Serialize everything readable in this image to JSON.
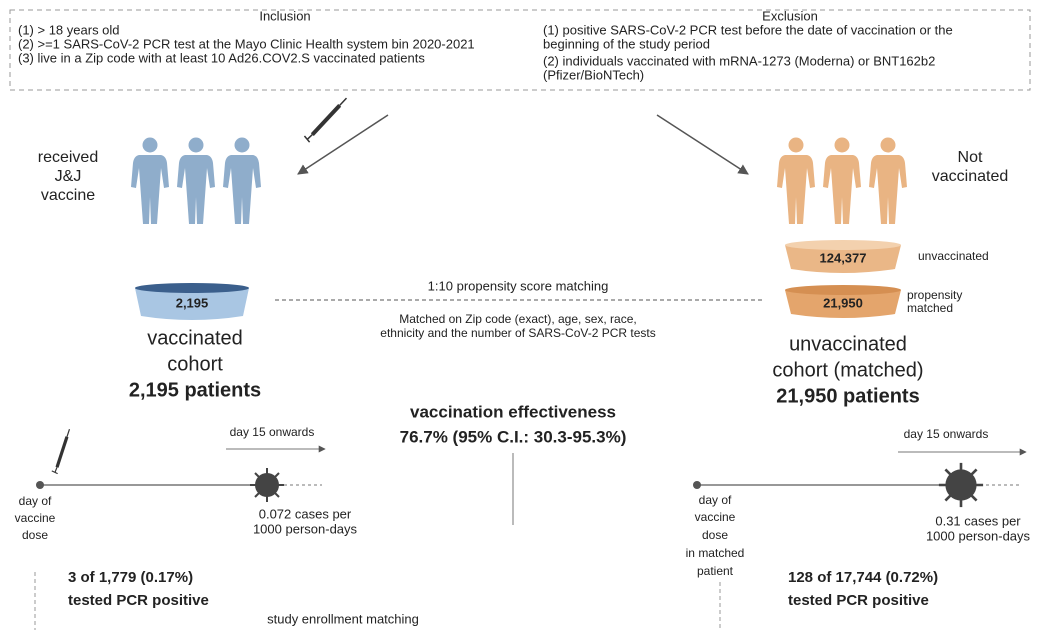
{
  "inclusion": {
    "title": "Inclusion",
    "lines": [
      "(1) > 18 years old",
      "(2) >=1 SARS-CoV-2 PCR test at the Mayo Clinic Health system bin 2020-2021",
      "(3) live in a Zip code with at least 10 Ad26.COV2.S vaccinated patients"
    ]
  },
  "exclusion": {
    "title": "Exclusion",
    "lines": [
      "(1) positive SARS-CoV-2 PCR test before the date of vaccination or the",
      "beginning of the study period",
      "(2)  individuals vaccinated with mRNA-1273 (Moderna) or BNT162b2",
      "(Pfizer/BioNTech)"
    ]
  },
  "vaccinated": {
    "group_label": [
      "received",
      "J&J",
      "vaccine"
    ],
    "cohort_count": "2,195",
    "cohort_label": [
      "vaccinated",
      "cohort"
    ],
    "patients": "2,195 patients"
  },
  "unvaccinated": {
    "group_label": [
      "Not",
      "vaccinated"
    ],
    "pool_count": "124,377",
    "pool_label": "unvaccinated",
    "matched_count": "21,950",
    "matched_label": [
      "propensity",
      "matched"
    ],
    "cohort_label": [
      "unvaccinated",
      "cohort (matched)"
    ],
    "patients": "21,950 patients"
  },
  "matching": {
    "title": "1:10 propensity score matching",
    "details": [
      "Matched on Zip code (exact), age, sex, race,",
      "ethnicity and the number of SARS-CoV-2 PCR tests"
    ]
  },
  "effectiveness": {
    "title": "vaccination effectiveness",
    "value": "76.7% (95% C.I.: 30.3-95.3%)"
  },
  "left_timeline": {
    "window": "day 15 onwards",
    "start": [
      "day of",
      "vaccine",
      "dose"
    ],
    "rate": [
      "0.072 cases per",
      "1000 person-days"
    ],
    "result": [
      "3 of 1,779 (0.17%)",
      "tested PCR positive"
    ]
  },
  "right_timeline": {
    "window": "day 15 onwards",
    "start": [
      "day of",
      "vaccine",
      "dose",
      "in matched",
      "patient"
    ],
    "rate": [
      "0.31 cases per",
      "1000 person-days"
    ],
    "result": [
      "128 of 17,744 (0.72%)",
      "tested PCR positive"
    ]
  },
  "footer": "study enrollment matching"
}
